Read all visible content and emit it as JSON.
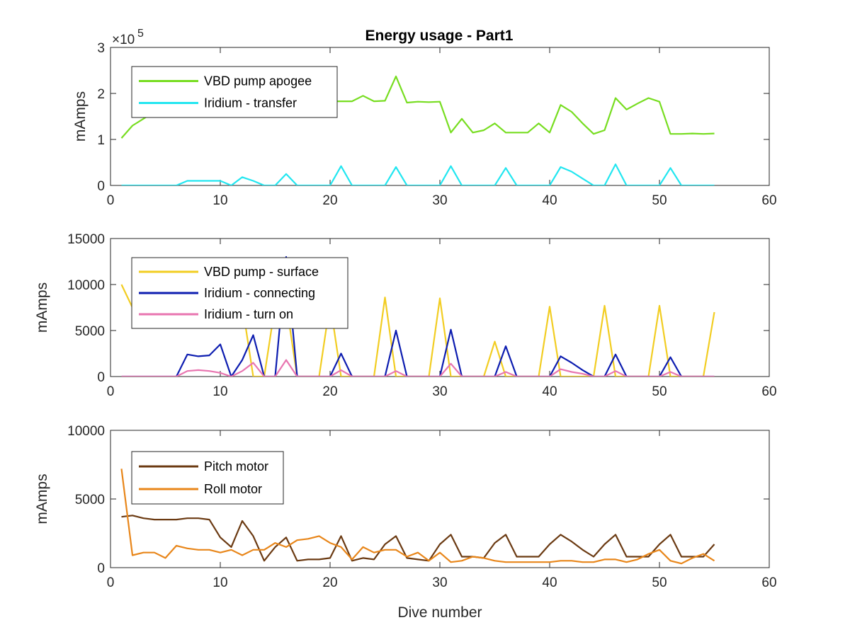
{
  "chart_data": [
    {
      "type": "line",
      "title": "Energy usage - Part1",
      "xlabel": "",
      "ylabel": "mAmps",
      "xlim": [
        0,
        60
      ],
      "ylim": [
        0,
        300000
      ],
      "x_ticks": [
        "0",
        "10",
        "20",
        "30",
        "40",
        "50",
        "60"
      ],
      "y_ticks": [
        "0",
        "1",
        "2",
        "3"
      ],
      "y_exponent": {
        "base": "×10",
        "power": "5"
      },
      "legend_placement": "upper-left",
      "series": [
        {
          "name": "VBD pump apogee",
          "color": "#77dd20",
          "x": [
            1,
            2,
            3,
            4,
            5,
            6,
            7,
            8,
            9,
            10,
            11,
            12,
            13,
            14,
            15,
            16,
            17,
            18,
            19,
            20,
            21,
            22,
            23,
            24,
            25,
            26,
            27,
            28,
            29,
            30,
            31,
            32,
            33,
            34,
            35,
            36,
            37,
            38,
            39,
            40,
            41,
            42,
            43,
            44,
            45,
            46,
            47,
            48,
            49,
            50,
            51,
            52,
            53,
            54,
            55
          ],
          "y": [
            103000,
            130000,
            145000,
            160000,
            168000,
            170000,
            171000,
            172000,
            172000,
            173000,
            174000,
            175000,
            176000,
            177000,
            178000,
            179000,
            180000,
            181000,
            182000,
            183000,
            183000,
            183000,
            195000,
            183000,
            184000,
            237000,
            180000,
            182000,
            181000,
            182000,
            115000,
            145000,
            115000,
            120000,
            135000,
            115000,
            115000,
            115000,
            135000,
            115000,
            175000,
            160000,
            135000,
            112000,
            120000,
            190000,
            165000,
            178000,
            190000,
            182000,
            112000,
            112000,
            113000,
            112000,
            113000
          ]
        },
        {
          "name": "Iridium - transfer",
          "color": "#22e6f0",
          "x": [
            1,
            2,
            3,
            4,
            5,
            6,
            7,
            8,
            9,
            10,
            11,
            12,
            13,
            14,
            15,
            16,
            17,
            18,
            19,
            20,
            21,
            22,
            23,
            24,
            25,
            26,
            27,
            28,
            29,
            30,
            31,
            32,
            33,
            34,
            35,
            36,
            37,
            38,
            39,
            40,
            41,
            42,
            43,
            44,
            45,
            46,
            47,
            48,
            49,
            50,
            51,
            52,
            53,
            54,
            55
          ],
          "y": [
            0,
            0,
            0,
            0,
            0,
            0,
            10000,
            10000,
            10000,
            10000,
            0,
            18000,
            10000,
            0,
            0,
            25000,
            0,
            0,
            0,
            0,
            42000,
            0,
            0,
            0,
            0,
            40000,
            0,
            0,
            0,
            0,
            42000,
            0,
            0,
            0,
            0,
            38000,
            0,
            0,
            0,
            0,
            40000,
            30000,
            15000,
            0,
            0,
            46000,
            0,
            0,
            0,
            0,
            38000,
            0,
            0,
            0,
            0
          ]
        }
      ]
    },
    {
      "type": "line",
      "title": "",
      "xlabel": "",
      "ylabel": "mAmps",
      "xlim": [
        0,
        60
      ],
      "ylim": [
        0,
        15000
      ],
      "x_ticks": [
        "0",
        "10",
        "20",
        "30",
        "40",
        "50",
        "60"
      ],
      "y_ticks": [
        "0",
        "5000",
        "10000",
        "15000"
      ],
      "legend_placement": "upper-left",
      "series": [
        {
          "name": "VBD pump - surface",
          "color": "#f2cd22",
          "x": [
            1,
            2,
            3,
            4,
            5,
            6,
            7,
            8,
            9,
            10,
            11,
            12,
            13,
            14,
            15,
            16,
            17,
            18,
            19,
            20,
            21,
            22,
            23,
            24,
            25,
            26,
            27,
            28,
            29,
            30,
            31,
            32,
            33,
            34,
            35,
            36,
            37,
            38,
            39,
            40,
            41,
            42,
            43,
            44,
            45,
            46,
            47,
            48,
            49,
            50,
            51,
            52,
            53,
            54,
            55
          ],
          "y": [
            10000,
            7500,
            7000,
            6500,
            6000,
            6000,
            7000,
            8000,
            9000,
            7500,
            8000,
            7800,
            0,
            0,
            7800,
            8000,
            0,
            0,
            0,
            8000,
            0,
            0,
            0,
            0,
            8600,
            0,
            0,
            0,
            0,
            8500,
            0,
            0,
            0,
            0,
            3800,
            0,
            0,
            0,
            0,
            7600,
            0,
            0,
            0,
            0,
            7700,
            0,
            0,
            0,
            0,
            7700,
            0,
            0,
            0,
            0,
            7000
          ]
        },
        {
          "name": "Iridium - connecting",
          "color": "#0d1db0",
          "x": [
            1,
            2,
            3,
            4,
            5,
            6,
            7,
            8,
            9,
            10,
            11,
            12,
            13,
            14,
            15,
            16,
            17,
            18,
            19,
            20,
            21,
            22,
            23,
            24,
            25,
            26,
            27,
            28,
            29,
            30,
            31,
            32,
            33,
            34,
            35,
            36,
            37,
            38,
            39,
            40,
            41,
            42,
            43,
            44,
            45,
            46,
            47,
            48,
            49,
            50,
            51,
            52,
            53,
            54,
            55
          ],
          "y": [
            0,
            0,
            0,
            0,
            0,
            0,
            2400,
            2200,
            2300,
            3500,
            0,
            1800,
            4500,
            0,
            0,
            13000,
            0,
            0,
            0,
            0,
            2500,
            0,
            0,
            0,
            0,
            5000,
            0,
            0,
            0,
            0,
            5100,
            0,
            0,
            0,
            0,
            3300,
            0,
            0,
            0,
            0,
            2200,
            1500,
            700,
            0,
            0,
            2400,
            0,
            0,
            0,
            0,
            2100,
            0,
            0,
            0,
            0
          ]
        },
        {
          "name": "Iridium - turn on",
          "color": "#e875b0",
          "x": [
            1,
            2,
            3,
            4,
            5,
            6,
            7,
            8,
            9,
            10,
            11,
            12,
            13,
            14,
            15,
            16,
            17,
            18,
            19,
            20,
            21,
            22,
            23,
            24,
            25,
            26,
            27,
            28,
            29,
            30,
            31,
            32,
            33,
            34,
            35,
            36,
            37,
            38,
            39,
            40,
            41,
            42,
            43,
            44,
            45,
            46,
            47,
            48,
            49,
            50,
            51,
            52,
            53,
            54,
            55
          ],
          "y": [
            0,
            0,
            0,
            0,
            0,
            0,
            600,
            700,
            600,
            400,
            0,
            600,
            1500,
            0,
            0,
            1800,
            0,
            0,
            0,
            0,
            700,
            0,
            0,
            0,
            0,
            600,
            0,
            0,
            0,
            0,
            1400,
            0,
            0,
            0,
            0,
            500,
            0,
            0,
            0,
            0,
            800,
            500,
            300,
            0,
            0,
            600,
            0,
            0,
            0,
            0,
            500,
            0,
            0,
            0,
            0
          ]
        }
      ]
    },
    {
      "type": "line",
      "title": "",
      "xlabel": "Dive number",
      "ylabel": "mAmps",
      "xlim": [
        0,
        60
      ],
      "ylim": [
        0,
        10000
      ],
      "x_ticks": [
        "0",
        "10",
        "20",
        "30",
        "40",
        "50",
        "60"
      ],
      "y_ticks": [
        "0",
        "5000",
        "10000"
      ],
      "legend_placement": "upper-left",
      "series": [
        {
          "name": "Pitch motor",
          "color": "#6b3a12",
          "x": [
            1,
            2,
            3,
            4,
            5,
            6,
            7,
            8,
            9,
            10,
            11,
            12,
            13,
            14,
            15,
            16,
            17,
            18,
            19,
            20,
            21,
            22,
            23,
            24,
            25,
            26,
            27,
            28,
            29,
            30,
            31,
            32,
            33,
            34,
            35,
            36,
            37,
            38,
            39,
            40,
            41,
            42,
            43,
            44,
            45,
            46,
            47,
            48,
            49,
            50,
            51,
            52,
            53,
            54,
            55
          ],
          "y": [
            3700,
            3800,
            3600,
            3500,
            3500,
            3500,
            3600,
            3600,
            3500,
            2200,
            1500,
            3400,
            2300,
            500,
            1500,
            2200,
            500,
            600,
            600,
            700,
            2300,
            500,
            700,
            600,
            1700,
            2300,
            700,
            600,
            500,
            1700,
            2400,
            800,
            800,
            700,
            1800,
            2400,
            800,
            800,
            800,
            1700,
            2400,
            1900,
            1300,
            800,
            1700,
            2400,
            800,
            800,
            800,
            1700,
            2400,
            800,
            800,
            800,
            1700
          ]
        },
        {
          "name": "Roll motor",
          "color": "#e8861a",
          "x": [
            1,
            2,
            3,
            4,
            5,
            6,
            7,
            8,
            9,
            10,
            11,
            12,
            13,
            14,
            15,
            16,
            17,
            18,
            19,
            20,
            21,
            22,
            23,
            24,
            25,
            26,
            27,
            28,
            29,
            30,
            31,
            32,
            33,
            34,
            35,
            36,
            37,
            38,
            39,
            40,
            41,
            42,
            43,
            44,
            45,
            46,
            47,
            48,
            49,
            50,
            51,
            52,
            53,
            54,
            55
          ],
          "y": [
            7200,
            900,
            1100,
            1100,
            700,
            1600,
            1400,
            1300,
            1300,
            1100,
            1300,
            900,
            1300,
            1300,
            1800,
            1500,
            2000,
            2100,
            2300,
            1800,
            1500,
            600,
            1500,
            1100,
            1300,
            1300,
            800,
            1100,
            500,
            1100,
            400,
            500,
            800,
            700,
            500,
            400,
            400,
            400,
            400,
            400,
            500,
            500,
            400,
            400,
            600,
            600,
            400,
            600,
            1000,
            1300,
            500,
            300,
            700,
            1000,
            500
          ]
        }
      ]
    }
  ]
}
